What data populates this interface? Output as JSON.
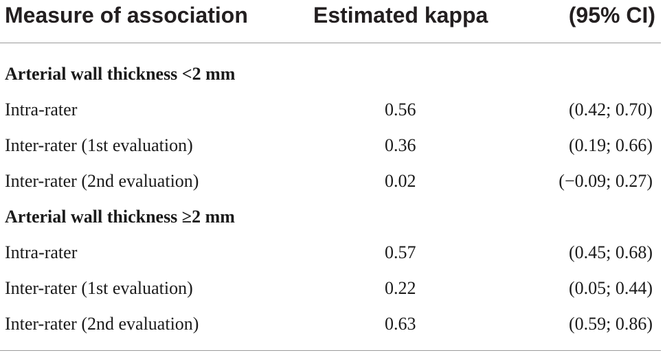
{
  "table": {
    "headers": {
      "measure": "Measure of association",
      "kappa": "Estimated kappa",
      "ci": "(95% CI)"
    },
    "groups": [
      {
        "title": "Arterial wall thickness <2 mm",
        "rows": [
          {
            "label": "Intra-rater",
            "kappa": "0.56",
            "ci": "(0.42; 0.70)"
          },
          {
            "label": "Inter-rater (1st evaluation)",
            "kappa": "0.36",
            "ci": "(0.19; 0.66)"
          },
          {
            "label": "Inter-rater (2nd evaluation)",
            "kappa": "0.02",
            "ci": "(−0.09; 0.27)"
          }
        ]
      },
      {
        "title": "Arterial wall thickness ≥2 mm",
        "rows": [
          {
            "label": "Intra-rater",
            "kappa": "0.57",
            "ci": "(0.45; 0.68)"
          },
          {
            "label": "Inter-rater (1st evaluation)",
            "kappa": "0.22",
            "ci": "(0.05; 0.44)"
          },
          {
            "label": "Inter-rater (2nd evaluation)",
            "kappa": "0.63",
            "ci": "(0.59; 0.86)"
          }
        ]
      }
    ]
  }
}
